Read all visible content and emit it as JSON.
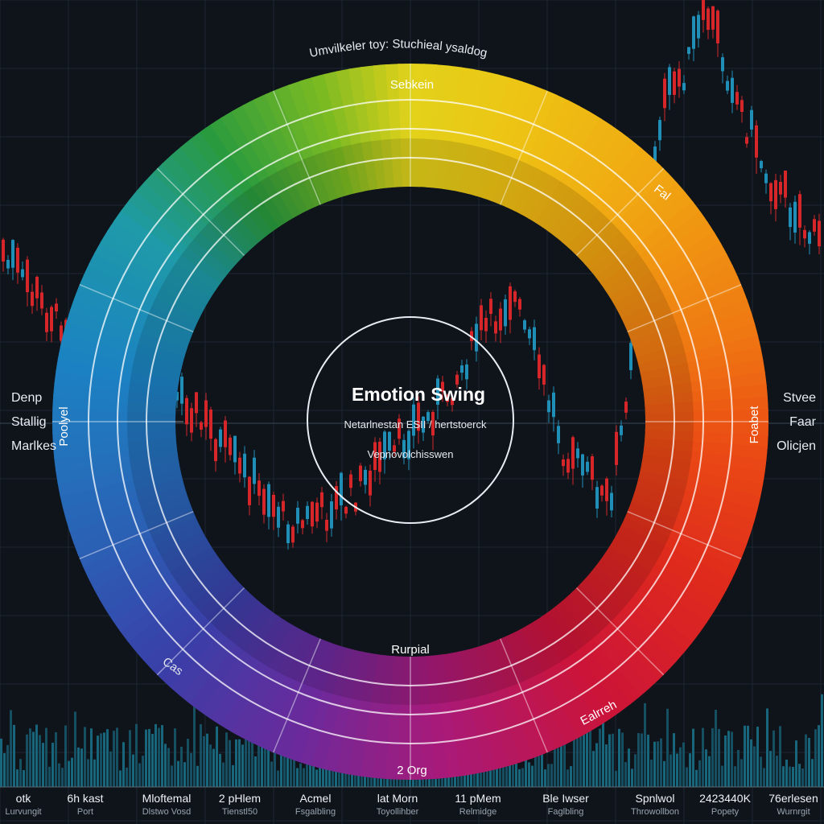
{
  "accent_colors": [
    "#2f9a3a",
    "#8bc21e",
    "#e6cf12",
    "#f3a20c",
    "#ef6a11",
    "#e02a16",
    "#b0124b",
    "#5b2a96",
    "#2f4da8",
    "#1f8ac4",
    "#1d9aa8"
  ],
  "background": "#0f141b",
  "chart_data": {
    "type": "donut",
    "title": "Emotion Swing",
    "subtitle": "Netarlnestan ESII / hertstoerck",
    "inner_caption": "Vepnovolchisswen",
    "outer_caption": "Umvilkeler toy: Stuchieal ysaldog",
    "segments": [
      {
        "label": "Sebkein",
        "color": "#d6d31c"
      },
      {
        "label": "Fal",
        "color": "#f0b816"
      },
      {
        "label": "Foabet",
        "color": "#ef6a11"
      },
      {
        "label": "Ealrreh",
        "color": "#d01a2c"
      },
      {
        "label": "Rurpial",
        "color": "#9a1a76"
      },
      {
        "label": "2 Org",
        "color": "#a01f88"
      },
      {
        "label": "Cas",
        "color": "#3a3aa0"
      },
      {
        "label": "Poolyel",
        "color": "#1f7fbc"
      }
    ]
  },
  "left_labels": [
    "Denp",
    "Stallig",
    "Marlkes"
  ],
  "right_labels": [
    "Stvee",
    "Faar",
    "Olicjen"
  ],
  "bottom_ticks": [
    {
      "label": "otk",
      "sub": "Lurvungit"
    },
    {
      "label": "6h kast",
      "sub": "Port"
    },
    {
      "label": "Mloftemal",
      "sub": "Dlstwo Vosd"
    },
    {
      "label": "2 pHlem",
      "sub": "Tienstl50"
    },
    {
      "label": "Acmel",
      "sub": "Fsgalbling"
    },
    {
      "label": "lat Morn",
      "sub": "Toyollihber"
    },
    {
      "label": "11 pMem",
      "sub": "Relmidge"
    },
    {
      "label": "Ble Iwser",
      "sub": "Faglbling"
    },
    {
      "label": "Spnlwol",
      "sub": "Throwollbon"
    },
    {
      "label": "2423440K",
      "sub": "Popety"
    },
    {
      "label": "76erlesen",
      "sub": "Wurnrgit"
    }
  ]
}
